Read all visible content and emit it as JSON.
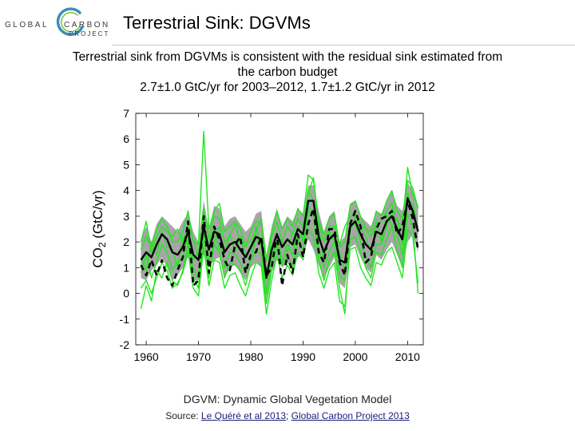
{
  "header": {
    "logo_left": "GLOBAL",
    "logo_right_top": "CARBON",
    "logo_right_bottom": "PROJECT",
    "title": "Terrestrial Sink: DGVMs"
  },
  "subtitle": {
    "line1": "Terrestrial sink from DGVMs is consistent with the residual sink estimated from",
    "line2": "the carbon budget",
    "line3": "2.7±1.0 GtC/yr for 2003–2012, 1.7±1.2 GtC/yr in 2012"
  },
  "footer": {
    "caption": "DGVM: Dynamic Global Vegetation Model",
    "source_prefix": "Source: ",
    "source_link1": "Le Quéré et al 2013",
    "source_sep": "; ",
    "source_link2": "Global Carbon Project 2013"
  },
  "colors": {
    "model_line": "#22e61e",
    "spread_band": "#a6a6a6",
    "mean_line": "#000000",
    "residual_line": "#000000",
    "logo_ring": "#3b8fb8"
  },
  "chart_data": {
    "type": "line",
    "title": "",
    "xlabel": "",
    "ylabel_main": "CO",
    "ylabel_sub": "2",
    "ylabel_rest": " (GtC/yr)",
    "xlim": [
      1958,
      2013
    ],
    "ylim": [
      -2,
      7
    ],
    "xticks": [
      1960,
      1970,
      1980,
      1990,
      2000,
      2010
    ],
    "yticks": [
      -2,
      -1,
      0,
      1,
      2,
      3,
      4,
      5,
      6,
      7
    ],
    "grid": false,
    "years": [
      1959,
      1960,
      1961,
      1962,
      1963,
      1964,
      1965,
      1966,
      1967,
      1968,
      1969,
      1970,
      1971,
      1972,
      1973,
      1974,
      1975,
      1976,
      1977,
      1978,
      1979,
      1980,
      1981,
      1982,
      1983,
      1984,
      1985,
      1986,
      1987,
      1988,
      1989,
      1990,
      1991,
      1992,
      1993,
      1994,
      1995,
      1996,
      1997,
      1998,
      1999,
      2000,
      2001,
      2002,
      2003,
      2004,
      2005,
      2006,
      2007,
      2008,
      2009,
      2010,
      2011,
      2012
    ],
    "series": [
      {
        "name": "",
        "style": "dgvm-spread-upper",
        "values": [
          2.1,
          2.6,
          2.0,
          2.7,
          3.0,
          2.8,
          2.6,
          2.4,
          2.8,
          3.1,
          2.4,
          2.0,
          3.6,
          2.5,
          3.4,
          3.3,
          2.6,
          2.9,
          3.0,
          2.7,
          2.4,
          2.6,
          3.1,
          3.2,
          1.5,
          2.6,
          3.3,
          2.6,
          3.0,
          2.8,
          3.3,
          3.1,
          4.2,
          4.2,
          3.2,
          2.4,
          3.0,
          3.2,
          2.0,
          2.2,
          3.5,
          3.6,
          3.0,
          2.8,
          2.6,
          3.2,
          3.1,
          3.6,
          4.0,
          3.4,
          3.2,
          4.3,
          4.0,
          3.3
        ]
      },
      {
        "name": "",
        "style": "dgvm-spread-lower",
        "values": [
          0.6,
          0.5,
          0.9,
          1.1,
          1.4,
          1.0,
          0.5,
          0.7,
          1.0,
          1.4,
          0.5,
          0.5,
          1.5,
          1.0,
          1.3,
          1.4,
          0.6,
          1.0,
          1.1,
          0.8,
          0.5,
          1.0,
          1.2,
          1.0,
          -0.2,
          0.8,
          1.3,
          1.0,
          1.2,
          0.9,
          1.4,
          1.5,
          2.1,
          1.7,
          1.1,
          0.6,
          1.0,
          1.4,
          0.4,
          0.2,
          1.8,
          1.9,
          1.4,
          1.0,
          0.8,
          1.5,
          1.3,
          1.7,
          2.0,
          1.5,
          1.0,
          2.0,
          2.3,
          1.6
        ]
      },
      {
        "name": "",
        "style": "dgvm-mean",
        "values": [
          1.3,
          1.6,
          1.4,
          1.9,
          2.3,
          2.1,
          1.6,
          1.5,
          1.8,
          2.4,
          1.5,
          1.3,
          2.6,
          1.7,
          2.4,
          2.3,
          1.6,
          1.9,
          2.0,
          1.7,
          1.4,
          1.8,
          2.2,
          2.1,
          0.6,
          1.7,
          2.3,
          1.8,
          2.1,
          1.9,
          2.5,
          2.3,
          3.6,
          3.6,
          2.2,
          1.6,
          2.1,
          2.3,
          1.3,
          1.2,
          2.6,
          2.8,
          2.3,
          1.9,
          1.7,
          2.4,
          2.3,
          2.8,
          3.0,
          2.5,
          2.1,
          3.7,
          3.2,
          2.4
        ]
      },
      {
        "name": "",
        "style": "residual-sink",
        "values": [
          1.1,
          0.7,
          1.3,
          0.7,
          1.3,
          0.6,
          0.3,
          0.9,
          1.4,
          2.8,
          0.3,
          0.5,
          3.0,
          0.8,
          2.6,
          2.1,
          1.3,
          0.9,
          1.9,
          2.2,
          0.8,
          1.5,
          1.6,
          2.2,
          0.7,
          1.0,
          2.3,
          0.3,
          1.5,
          0.8,
          2.3,
          1.4,
          2.7,
          3.3,
          1.6,
          1.2,
          2.5,
          2.5,
          1.2,
          0.7,
          2.7,
          3.2,
          2.6,
          1.2,
          1.4,
          2.5,
          2.9,
          3.0,
          3.2,
          2.3,
          2.6,
          3.6,
          2.9,
          1.7
        ]
      },
      {
        "name": "",
        "style": "dgvm-model",
        "values": [
          0.8,
          1.5,
          0.6,
          1.2,
          1.9,
          1.6,
          0.9,
          1.2,
          1.4,
          2.2,
          1.0,
          0.6,
          3.1,
          1.2,
          2.0,
          2.6,
          1.0,
          1.6,
          1.5,
          1.2,
          0.8,
          1.4,
          2.1,
          2.0,
          0.0,
          1.3,
          2.4,
          1.2,
          1.9,
          1.5,
          2.6,
          2.0,
          4.0,
          3.6,
          1.7,
          1.0,
          1.6,
          2.0,
          0.7,
          0.5,
          2.6,
          2.7,
          2.0,
          1.4,
          1.0,
          1.9,
          1.9,
          2.6,
          3.3,
          2.3,
          1.5,
          3.6,
          3.5,
          2.4
        ]
      },
      {
        "name": "",
        "style": "dgvm-model",
        "values": [
          1.7,
          2.2,
          1.8,
          2.5,
          2.9,
          2.6,
          2.0,
          2.0,
          2.4,
          3.2,
          2.0,
          1.9,
          6.3,
          2.5,
          3.2,
          3.5,
          2.4,
          2.6,
          2.8,
          2.5,
          1.8,
          2.4,
          2.8,
          2.7,
          1.3,
          2.4,
          3.2,
          2.5,
          2.9,
          2.6,
          3.3,
          3.0,
          4.6,
          4.4,
          2.8,
          2.3,
          2.9,
          3.1,
          1.8,
          2.0,
          3.4,
          3.6,
          3.0,
          2.5,
          2.4,
          3.2,
          3.0,
          3.6,
          4.0,
          3.2,
          2.9,
          4.4,
          4.1,
          3.3
        ]
      },
      {
        "name": "",
        "style": "dgvm-model",
        "values": [
          0.2,
          0.5,
          0.0,
          0.6,
          1.2,
          0.9,
          0.2,
          0.4,
          0.8,
          1.6,
          0.2,
          -0.1,
          1.8,
          0.3,
          1.3,
          1.2,
          0.2,
          0.7,
          0.8,
          0.3,
          -0.1,
          0.6,
          1.2,
          1.1,
          -0.8,
          0.5,
          1.5,
          0.6,
          1.1,
          0.7,
          1.6,
          1.3,
          2.5,
          2.2,
          0.8,
          0.2,
          0.9,
          1.2,
          -0.3,
          -0.5,
          1.7,
          1.8,
          1.0,
          0.6,
          0.3,
          1.2,
          1.1,
          1.6,
          1.8,
          1.2,
          0.6,
          2.5,
          2.2,
          0.4
        ]
      },
      {
        "name": "",
        "style": "dgvm-model",
        "values": [
          1.4,
          0.9,
          2.0,
          1.5,
          2.4,
          1.8,
          1.7,
          1.0,
          2.2,
          1.9,
          1.3,
          1.6,
          2.2,
          1.9,
          2.6,
          1.7,
          1.6,
          2.3,
          1.6,
          2.2,
          1.5,
          1.3,
          2.6,
          1.8,
          0.9,
          1.4,
          2.0,
          2.1,
          1.6,
          2.4,
          2.0,
          2.4,
          3.4,
          3.0,
          2.5,
          1.3,
          2.4,
          2.0,
          1.6,
          0.9,
          2.4,
          3.0,
          2.6,
          2.2,
          1.5,
          2.8,
          2.0,
          3.1,
          2.6,
          2.9,
          1.9,
          3.9,
          3.0,
          2.6
        ]
      },
      {
        "name": "",
        "style": "dgvm-model",
        "values": [
          -0.6,
          0.3,
          -0.3,
          0.9,
          0.6,
          1.2,
          0.5,
          0.3,
          0.9,
          1.9,
          0.6,
          0.2,
          2.4,
          0.6,
          1.9,
          1.6,
          0.6,
          1.2,
          1.1,
          0.9,
          0.3,
          1.2,
          1.7,
          1.5,
          -0.4,
          0.9,
          1.9,
          1.1,
          1.5,
          1.0,
          2.0,
          1.7,
          3.2,
          3.0,
          1.3,
          0.5,
          1.3,
          1.6,
          0.2,
          -0.8,
          2.1,
          2.2,
          1.6,
          1.0,
          0.6,
          1.6,
          1.5,
          2.1,
          2.6,
          1.7,
          1.0,
          3.1,
          2.6,
          0.0
        ]
      },
      {
        "name": "",
        "style": "dgvm-model",
        "values": [
          2.0,
          2.8,
          1.6,
          2.2,
          2.6,
          2.4,
          2.2,
          2.5,
          2.0,
          2.6,
          2.1,
          1.4,
          3.3,
          2.1,
          3.0,
          2.9,
          2.0,
          2.2,
          2.7,
          2.0,
          2.0,
          2.0,
          2.4,
          2.9,
          0.6,
          2.2,
          2.8,
          2.0,
          2.6,
          2.3,
          2.9,
          2.6,
          3.9,
          4.5,
          2.7,
          2.0,
          2.6,
          2.6,
          1.9,
          2.6,
          3.0,
          3.1,
          2.7,
          2.5,
          2.2,
          2.7,
          2.8,
          3.2,
          3.5,
          2.8,
          2.6,
          4.9,
          3.8,
          3.4
        ]
      }
    ]
  }
}
